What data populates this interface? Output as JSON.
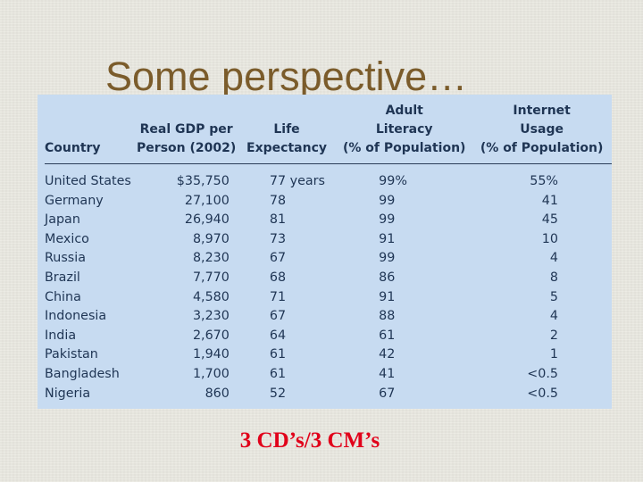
{
  "slide": {
    "title": "Some perspective…",
    "footer": "3 CD’s/3 CM’s",
    "colors": {
      "title": "#7b5c2b",
      "table_background": "#c7dbf1",
      "table_text": "#1f3554",
      "footer": "#e1001a"
    }
  },
  "table": {
    "headers": {
      "country": [
        "Country"
      ],
      "gdp": [
        "Real GDP per",
        "Person (2002)"
      ],
      "life": [
        "Life",
        "Expectancy"
      ],
      "literacy": [
        "Adult",
        "Literacy",
        "(% of Population)"
      ],
      "internet": [
        "Internet",
        "Usage",
        "(% of Population)"
      ]
    },
    "rows": [
      {
        "country": "United States",
        "gdp": "$35,750",
        "life": "77 years",
        "literacy": "99%",
        "internet": "55%"
      },
      {
        "country": "Germany",
        "gdp": "27,100",
        "life": "78",
        "literacy": "99",
        "internet": "41"
      },
      {
        "country": "Japan",
        "gdp": "26,940",
        "life": "81",
        "literacy": "99",
        "internet": "45"
      },
      {
        "country": "Mexico",
        "gdp": "8,970",
        "life": "73",
        "literacy": "91",
        "internet": "10"
      },
      {
        "country": "Russia",
        "gdp": "8,230",
        "life": "67",
        "literacy": "99",
        "internet": "4"
      },
      {
        "country": "Brazil",
        "gdp": "7,770",
        "life": "68",
        "literacy": "86",
        "internet": "8"
      },
      {
        "country": "China",
        "gdp": "4,580",
        "life": "71",
        "literacy": "91",
        "internet": "5"
      },
      {
        "country": "Indonesia",
        "gdp": "3,230",
        "life": "67",
        "literacy": "88",
        "internet": "4"
      },
      {
        "country": "India",
        "gdp": "2,670",
        "life": "64",
        "literacy": "61",
        "internet": "2"
      },
      {
        "country": "Pakistan",
        "gdp": "1,940",
        "life": "61",
        "literacy": "42",
        "internet": "1"
      },
      {
        "country": "Bangladesh",
        "gdp": "1,700",
        "life": "61",
        "literacy": "41",
        "internet": "<0.5"
      },
      {
        "country": "Nigeria",
        "gdp": "860",
        "life": "52",
        "literacy": "67",
        "internet": "<0.5"
      }
    ]
  }
}
